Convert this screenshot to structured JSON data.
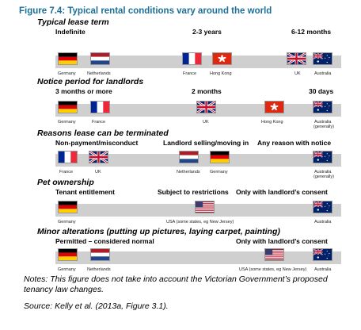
{
  "figure_title": "Figure 7.4: Typical rental conditions vary around the world",
  "sections": [
    {
      "heading": "Typical lease term",
      "labels": [
        "Indefinite",
        "2-3 years",
        "6-12 months"
      ],
      "captions": [
        "Germany",
        "Netherlands",
        "France",
        "Hong Kong",
        "UK",
        "Australia"
      ]
    },
    {
      "heading": "Notice period for landlords",
      "labels": [
        "3 months or more",
        "2 months",
        "30 days"
      ],
      "captions": [
        "Germany",
        "France",
        "UK",
        "Hong Kong",
        "Australia",
        "(generally)"
      ]
    },
    {
      "heading": "Reasons lease can be terminated",
      "labels": [
        "Non-payment/misconduct",
        "Landlord selling/moving in",
        "Any reason with notice"
      ],
      "captions": [
        "France",
        "UK",
        "Netherlands",
        "Germany",
        "Australia",
        "(generally)"
      ]
    },
    {
      "heading": "Pet ownership",
      "labels": [
        "Tenant entitlement",
        "Subject to restrictions",
        "Only with landlord’s consent"
      ],
      "captions": [
        "Germany",
        "USA (some states, eg New Jersey)",
        "Australia"
      ]
    },
    {
      "heading": "Minor alterations (putting up pictures, laying carpet, painting)",
      "labels": [
        "Permitted – considered normal",
        "Only with landlord’s consent"
      ],
      "captions": [
        "Germany",
        "Netherlands",
        "USA (some states, eg New Jersey)",
        "Australia"
      ]
    }
  ],
  "notes": {
    "line1": "Notes: This figure does not take into account the Victorian Government’s proposed",
    "line2": "tenancy law changes.",
    "source": "Source: Kelly et al. (2013a, Figure 3.1)."
  },
  "colors": {
    "title": "#1c6f96",
    "bar": "#cfcfcf"
  },
  "flag_icons": [
    "germany-flag-icon",
    "netherlands-flag-icon",
    "france-flag-icon",
    "hong-kong-flag-icon",
    "uk-flag-icon",
    "australia-flag-icon",
    "usa-flag-icon"
  ]
}
